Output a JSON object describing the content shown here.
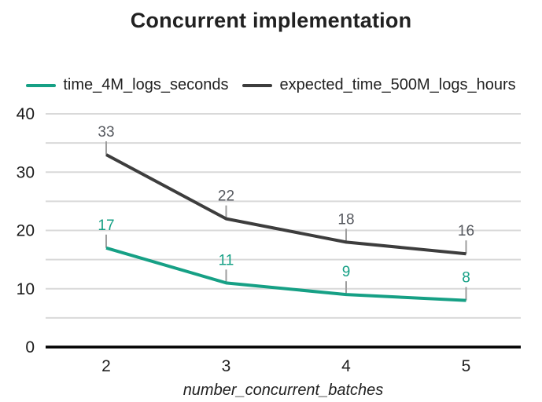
{
  "chart_data": {
    "type": "line",
    "title": "Concurrent implementation",
    "xlabel": "number_concurrent_batches",
    "ylabel": "",
    "categories": [
      2,
      3,
      4,
      5
    ],
    "series": [
      {
        "name": "time_4M_logs_seconds",
        "values": [
          17,
          11,
          9,
          8
        ],
        "color": "#16a085",
        "label_color": "#16a085"
      },
      {
        "name": "expected_time_500M_logs_hours",
        "values": [
          33,
          22,
          18,
          16
        ],
        "color": "#3d3d3d",
        "label_color": "#55585e"
      }
    ],
    "ylim": [
      0,
      40
    ],
    "ytick_labels": [
      0,
      10,
      20,
      30,
      40
    ],
    "grid_interval": 5,
    "grid": true,
    "data_labels": true,
    "legend_position": "top",
    "style": {
      "background": "#ffffff",
      "grid_color": "#d9d9d9",
      "axis_color": "#000000",
      "leader_color": "#9e9e9e",
      "tick_label_color": "#1a1a1a",
      "x_tick_label_color": "#212121"
    }
  }
}
